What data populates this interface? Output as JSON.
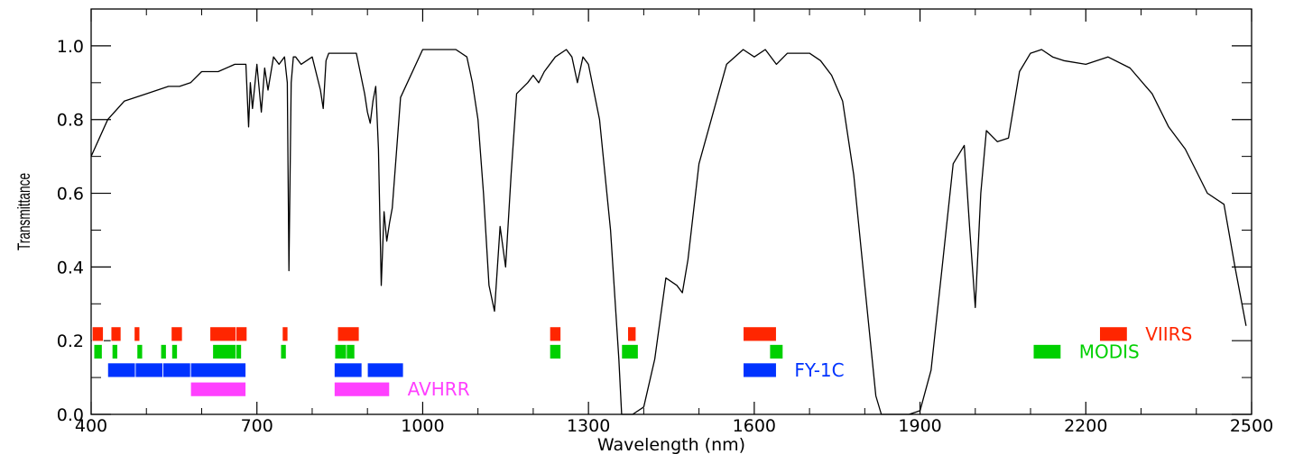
{
  "chart_data": {
    "type": "line",
    "title": "",
    "xlabel": "Wavelength (nm)",
    "ylabel": "Transmittance",
    "xlim": [
      400,
      2500
    ],
    "ylim": [
      0,
      1.1
    ],
    "x_ticks": [
      "400",
      "700",
      "1000",
      "1300",
      "1600",
      "1900",
      "2200",
      "2500"
    ],
    "x_tick_values": [
      400,
      700,
      1000,
      1300,
      1600,
      1900,
      2200,
      2500
    ],
    "y_ticks": [
      "0.0",
      "0.2",
      "0.4",
      "0.6",
      "0.8",
      "1.0"
    ],
    "y_tick_values": [
      0,
      0.2,
      0.4,
      0.6,
      0.8,
      1.0
    ],
    "grid": false,
    "series": [
      {
        "color": "#000000",
        "x": [
          400,
          430,
          460,
          500,
          540,
          560,
          580,
          600,
          630,
          660,
          680,
          685,
          688,
          692,
          700,
          708,
          714,
          720,
          730,
          740,
          750,
          755,
          758,
          762,
          766,
          770,
          780,
          800,
          815,
          820,
          825,
          830,
          840,
          860,
          880,
          895,
          900,
          905,
          910,
          915,
          920,
          925,
          930,
          935,
          940,
          945,
          960,
          1000,
          1030,
          1060,
          1080,
          1090,
          1100,
          1110,
          1120,
          1130,
          1140,
          1150,
          1160,
          1170,
          1190,
          1200,
          1210,
          1220,
          1240,
          1260,
          1270,
          1280,
          1290,
          1300,
          1320,
          1340,
          1355,
          1360,
          1380,
          1400,
          1420,
          1440,
          1460,
          1470,
          1480,
          1500,
          1550,
          1580,
          1600,
          1620,
          1640,
          1660,
          1680,
          1700,
          1720,
          1740,
          1760,
          1780,
          1800,
          1820,
          1830,
          1850,
          1880,
          1900,
          1920,
          1940,
          1960,
          1980,
          1990,
          2000,
          2010,
          2020,
          2040,
          2060,
          2080,
          2100,
          2120,
          2140,
          2160,
          2200,
          2240,
          2280,
          2320,
          2350,
          2380,
          2400,
          2420,
          2450,
          2470,
          2490
        ],
        "y": [
          0.7,
          0.8,
          0.85,
          0.87,
          0.89,
          0.89,
          0.9,
          0.93,
          0.93,
          0.95,
          0.95,
          0.78,
          0.9,
          0.83,
          0.95,
          0.82,
          0.94,
          0.88,
          0.97,
          0.95,
          0.97,
          0.9,
          0.39,
          0.9,
          0.97,
          0.97,
          0.95,
          0.97,
          0.88,
          0.83,
          0.96,
          0.98,
          0.98,
          0.98,
          0.98,
          0.87,
          0.82,
          0.79,
          0.85,
          0.89,
          0.72,
          0.35,
          0.55,
          0.47,
          0.52,
          0.56,
          0.86,
          0.99,
          0.99,
          0.99,
          0.97,
          0.9,
          0.8,
          0.6,
          0.35,
          0.28,
          0.51,
          0.4,
          0.65,
          0.87,
          0.9,
          0.92,
          0.9,
          0.93,
          0.97,
          0.99,
          0.97,
          0.9,
          0.97,
          0.95,
          0.8,
          0.5,
          0.15,
          0.0,
          0.0,
          0.02,
          0.15,
          0.37,
          0.35,
          0.33,
          0.42,
          0.68,
          0.95,
          0.99,
          0.97,
          0.99,
          0.95,
          0.98,
          0.98,
          0.98,
          0.96,
          0.92,
          0.85,
          0.65,
          0.35,
          0.05,
          0.0,
          0.0,
          0.0,
          0.01,
          0.12,
          0.4,
          0.68,
          0.73,
          0.5,
          0.29,
          0.6,
          0.77,
          0.74,
          0.75,
          0.93,
          0.98,
          0.99,
          0.97,
          0.96,
          0.95,
          0.97,
          0.94,
          0.87,
          0.78,
          0.72,
          0.66,
          0.6,
          0.57,
          0.4,
          0.24
        ]
      }
    ],
    "instrument_bands": [
      {
        "name": "VIIRS",
        "color": "#ff2600",
        "y": 0.218,
        "bands": [
          [
            402,
            422
          ],
          [
            436,
            454
          ],
          [
            478,
            488
          ],
          [
            545,
            565
          ],
          [
            615,
            663
          ],
          [
            662,
            682
          ],
          [
            746,
            756
          ],
          [
            846,
            885
          ],
          [
            1230,
            1250
          ],
          [
            1371,
            1386
          ],
          [
            1580,
            1640
          ],
          [
            2225,
            2275
          ]
        ]
      },
      {
        "name": "MODIS",
        "color": "#00d000",
        "y": 0.17,
        "bands": [
          [
            405,
            420
          ],
          [
            438,
            448
          ],
          [
            483,
            493
          ],
          [
            526,
            536
          ],
          [
            546,
            556
          ],
          [
            620,
            670
          ],
          [
            662,
            672
          ],
          [
            743,
            753
          ],
          [
            841,
            876
          ],
          [
            862,
            877
          ],
          [
            1230,
            1250
          ],
          [
            1360,
            1390
          ],
          [
            1628,
            1652
          ],
          [
            2105,
            2155
          ]
        ]
      },
      {
        "name": "FY-1C",
        "color": "#0033ff",
        "y": 0.12,
        "bands": [
          [
            430,
            480
          ],
          [
            480,
            530
          ],
          [
            530,
            580
          ],
          [
            580,
            680
          ],
          [
            840,
            890
          ],
          [
            900,
            965
          ],
          [
            1580,
            1640
          ]
        ]
      },
      {
        "name": "AVHRR",
        "color": "#ff40ff",
        "y": 0.068,
        "bands": [
          [
            580,
            680
          ],
          [
            840,
            940
          ]
        ]
      }
    ]
  }
}
